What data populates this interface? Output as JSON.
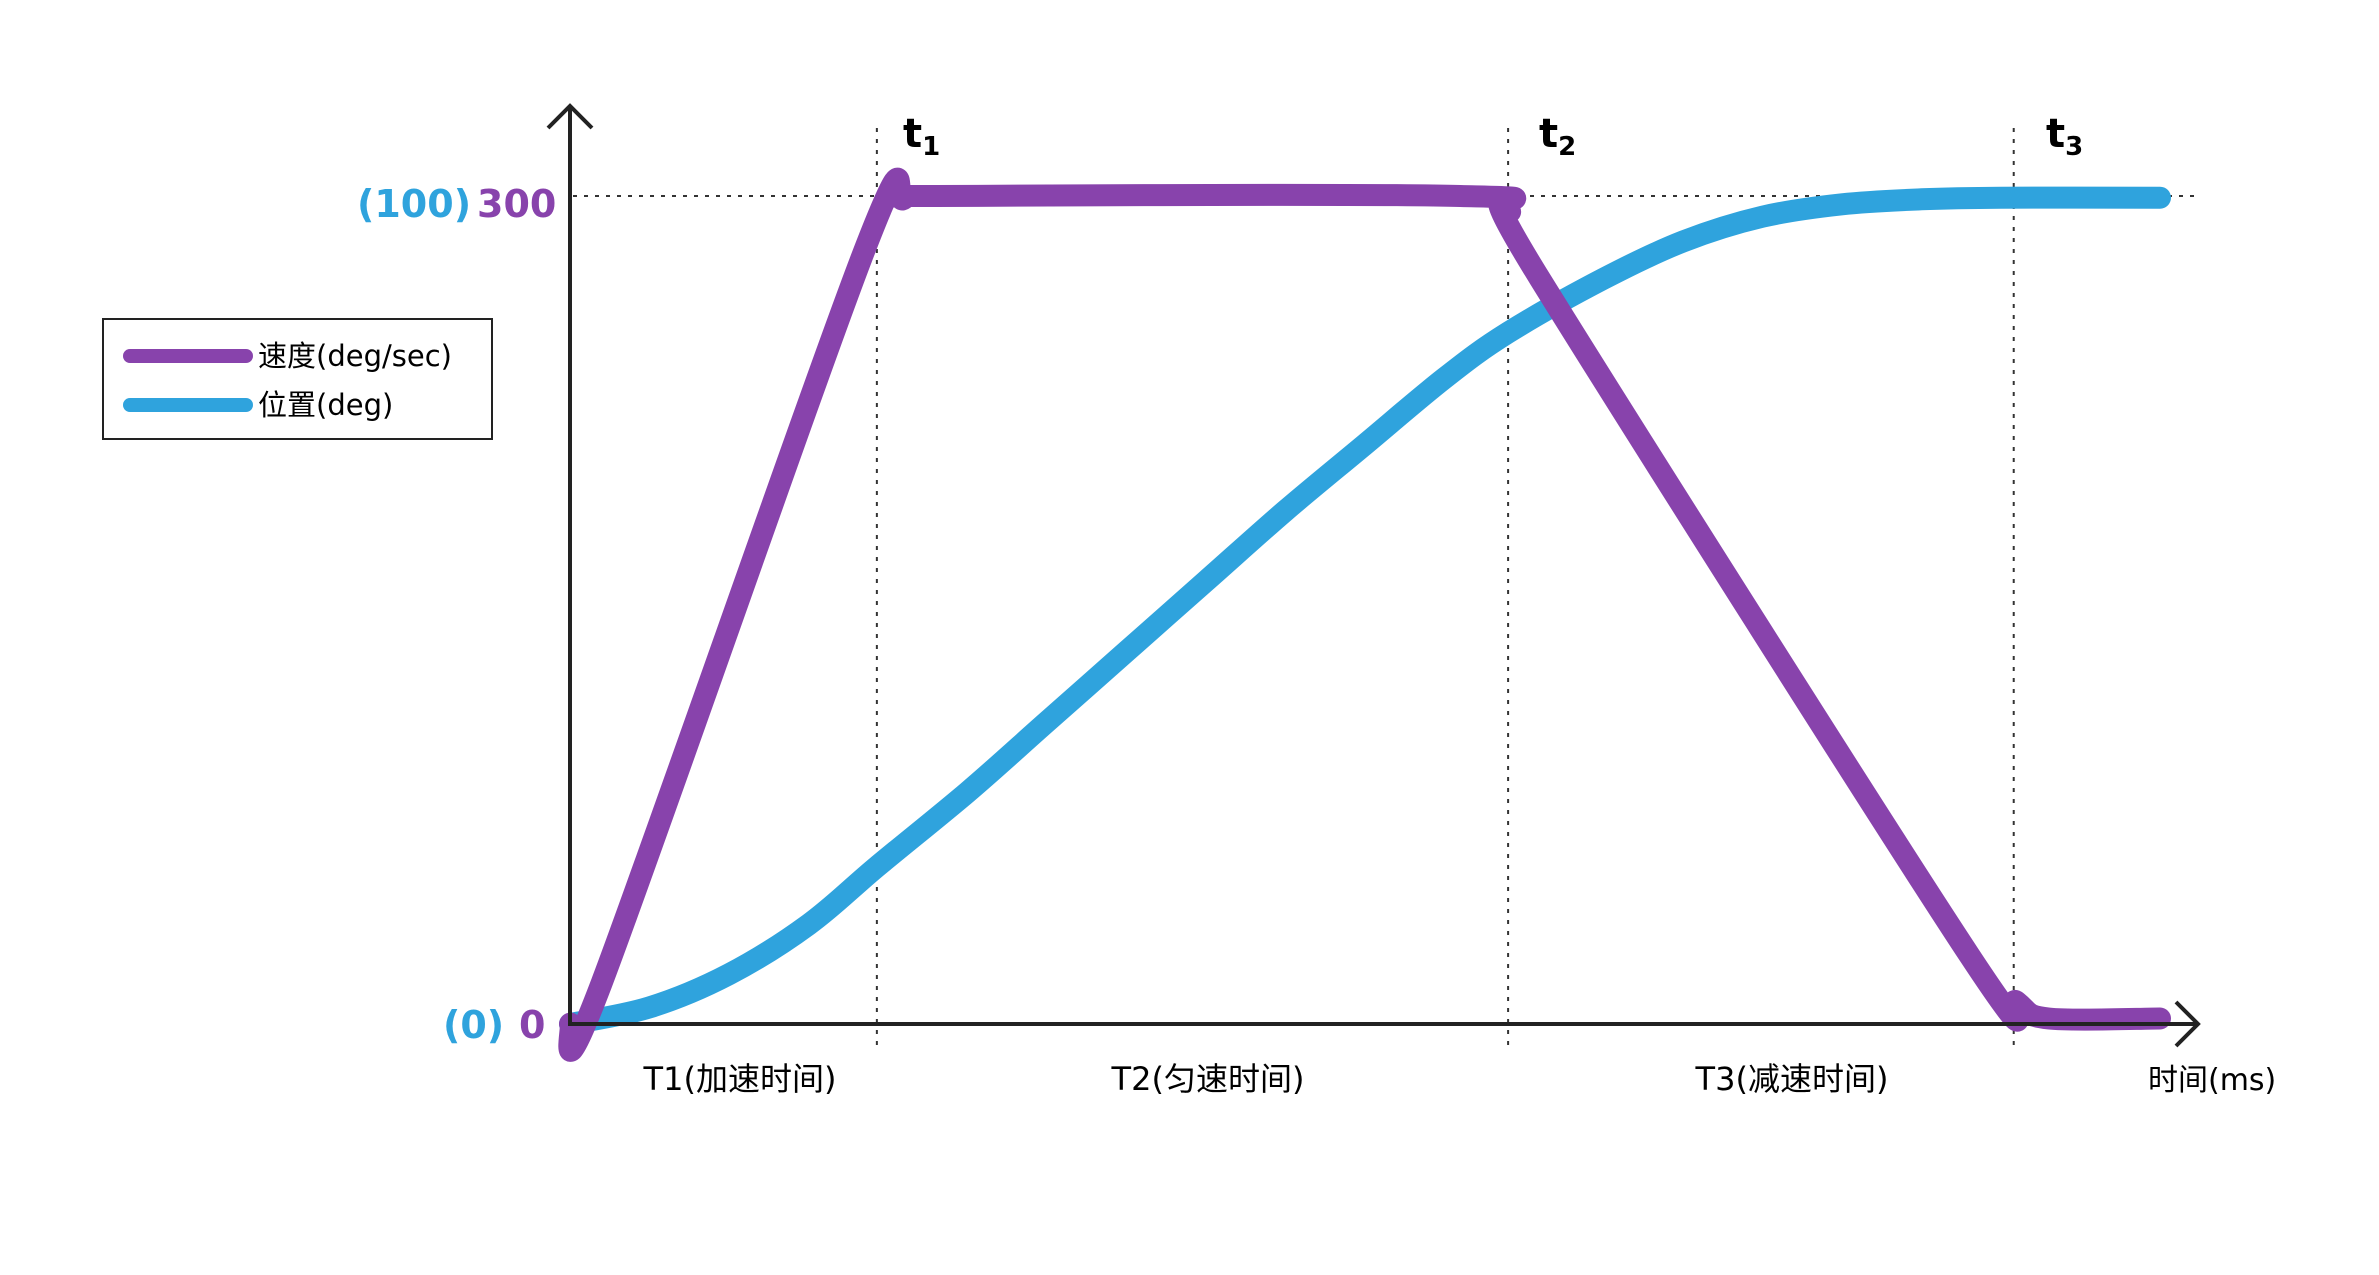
{
  "colors": {
    "velocity": "#8843ac",
    "position": "#2fa3dd",
    "axis": "#222222",
    "grid": "#333333"
  },
  "axis": {
    "y_top_position_label": "(100)",
    "y_top_velocity_label": "300",
    "y_zero_position_label": "(0)",
    "y_zero_velocity_label": "0",
    "x_label": "时间(ms)"
  },
  "markers": [
    {
      "base": "t",
      "sub": "1"
    },
    {
      "base": "t",
      "sub": "2"
    },
    {
      "base": "t",
      "sub": "3"
    }
  ],
  "phases": [
    "T1(加速时间)",
    "T2(匀速时间)",
    "T3(减速时间)"
  ],
  "legend": {
    "velocity": "速度(deg/sec)",
    "position": "位置(deg)"
  },
  "chart_data": {
    "type": "line",
    "title": "",
    "xlabel": "时间(ms)",
    "ylabel": "",
    "x_range": [
      0,
      100
    ],
    "markers_x": [
      19.3,
      59.0,
      90.8
    ],
    "legend_position": "left",
    "grid": false,
    "series": [
      {
        "name": "速度(deg/sec)",
        "axis": "velocity",
        "ylim": [
          0,
          300
        ],
        "points": [
          [
            0,
            0
          ],
          [
            2,
            15
          ],
          [
            18.5,
            280
          ],
          [
            21,
            299
          ],
          [
            23,
            300
          ],
          [
            56,
            300
          ],
          [
            59,
            295
          ],
          [
            61,
            270
          ],
          [
            88,
            25
          ],
          [
            91,
            8
          ],
          [
            93,
            2
          ],
          [
            100,
            2
          ]
        ]
      },
      {
        "name": "位置(deg)",
        "axis": "position",
        "ylim": [
          0,
          100
        ],
        "points": [
          [
            0,
            0
          ],
          [
            5,
            2
          ],
          [
            10,
            6
          ],
          [
            15,
            12
          ],
          [
            19.3,
            19
          ],
          [
            25,
            28
          ],
          [
            30,
            36.5
          ],
          [
            35,
            45
          ],
          [
            40,
            53.5
          ],
          [
            45,
            62
          ],
          [
            50,
            70
          ],
          [
            55,
            78
          ],
          [
            59,
            83.5
          ],
          [
            65,
            90
          ],
          [
            70,
            94.5
          ],
          [
            75,
            97.5
          ],
          [
            80,
            99
          ],
          [
            85,
            99.6
          ],
          [
            90,
            99.8
          ],
          [
            100,
            99.8
          ]
        ]
      }
    ]
  }
}
